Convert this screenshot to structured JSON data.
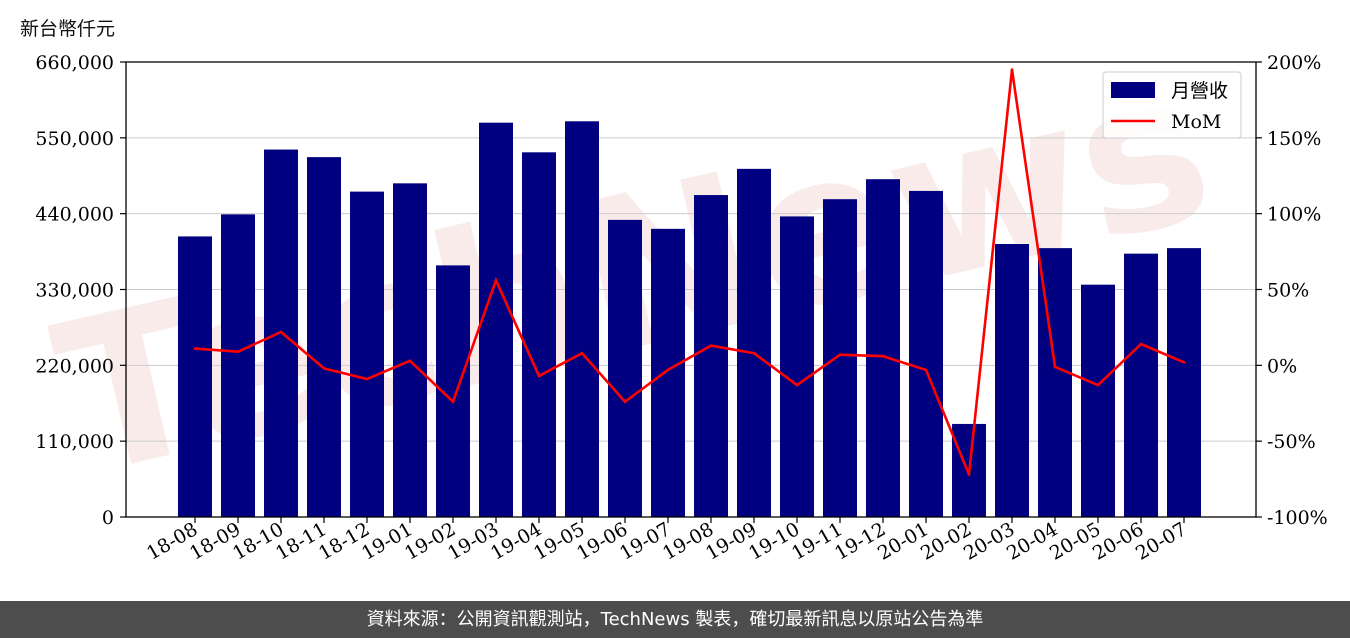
{
  "unit_label": "新台幣仟元",
  "footer": "資料來源：公開資訊觀測站，TechNews 製表，確切最新訊息以原站公告為準",
  "watermark": "TechNews",
  "colors": {
    "bar": "#000080",
    "line": "#ff0000",
    "footer_bg": "#4d4d4d",
    "grid": "#cccccc"
  },
  "chart_data": {
    "type": "bar",
    "categories": [
      "18-08",
      "18-09",
      "18-10",
      "18-11",
      "18-12",
      "19-01",
      "19-02",
      "19-03",
      "19-04",
      "19-05",
      "19-06",
      "19-07",
      "19-08",
      "19-09",
      "19-10",
      "19-11",
      "19-12",
      "20-01",
      "20-02",
      "20-03",
      "20-04",
      "20-05",
      "20-06",
      "20-07"
    ],
    "series": [
      {
        "name": "月營收",
        "type": "bar",
        "axis": "left",
        "values": [
          407000,
          439000,
          533000,
          522000,
          472000,
          484000,
          365000,
          572000,
          529000,
          574000,
          431000,
          418000,
          467000,
          505000,
          436000,
          461000,
          490000,
          473000,
          135000,
          396000,
          390000,
          337000,
          382000,
          390000
        ]
      },
      {
        "name": "MoM",
        "type": "line",
        "axis": "right",
        "values": [
          11,
          9,
          22,
          -2,
          -9,
          3,
          -24,
          56,
          -7,
          8,
          -24,
          -3,
          13,
          8,
          -13,
          7,
          6,
          -3,
          -72,
          195,
          -1,
          -13,
          14,
          2
        ]
      }
    ],
    "left_axis": {
      "ylim": [
        0,
        660000
      ],
      "ticks": [
        "0",
        "110,000",
        "220,000",
        "330,000",
        "440,000",
        "550,000",
        "660,000"
      ]
    },
    "right_axis": {
      "ylim": [
        -100,
        200
      ],
      "ticks": [
        "-100%",
        "-50%",
        "0%",
        "50%",
        "100%",
        "150%",
        "200%"
      ]
    },
    "grid": true,
    "legend_position": "top-right"
  }
}
